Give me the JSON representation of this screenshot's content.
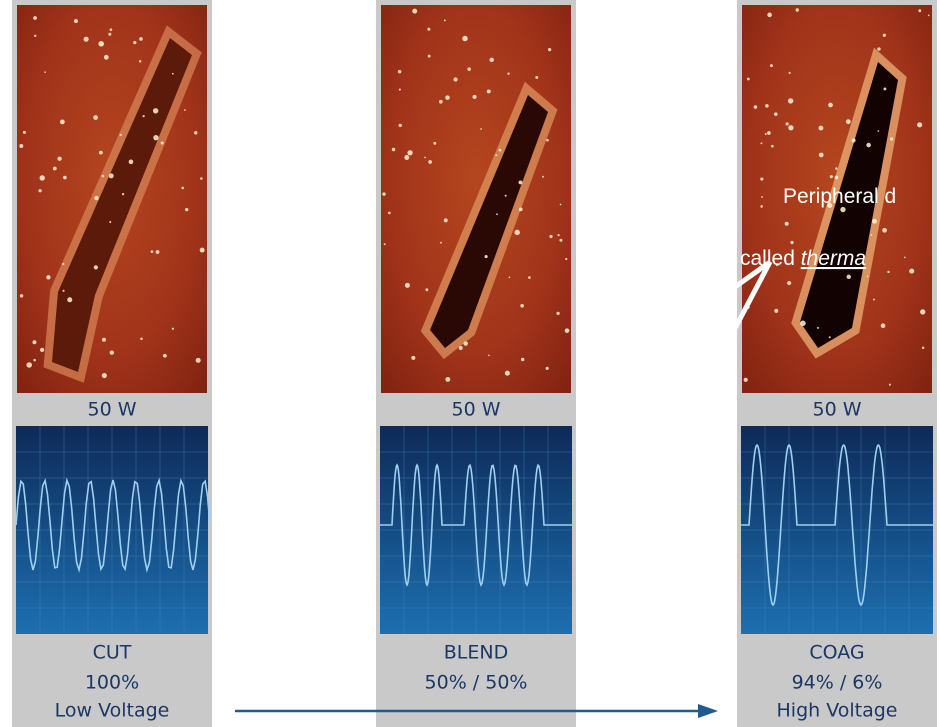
{
  "panels": [
    {
      "power": "50 W",
      "mode": "CUT",
      "ratio": "100%",
      "voltage": "Low Voltage"
    },
    {
      "power": "50 W",
      "mode": "BLEND",
      "ratio": "50% / 50%"
    },
    {
      "power": "50 W",
      "mode": "COAG",
      "ratio": "94% / 6%",
      "voltage": "High Voltage"
    }
  ],
  "annotation": {
    "line1": "Peripheral d",
    "line2": "called",
    "line2_emphasis": "therma"
  }
}
